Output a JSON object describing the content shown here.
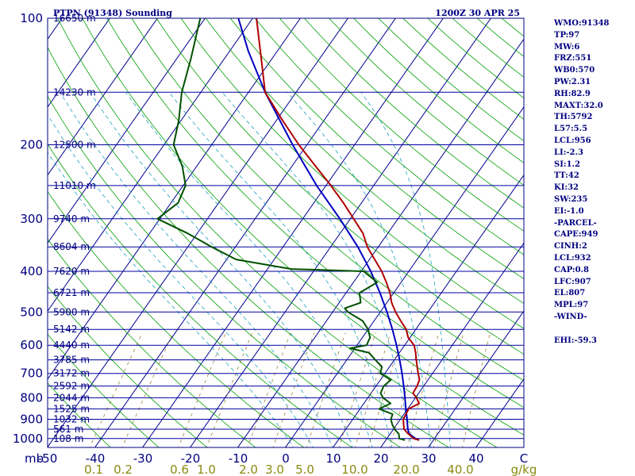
{
  "header": {
    "station": "PTPN (91348) Sounding",
    "time": "1200Z 30 APR 25"
  },
  "indices": [
    "WMO:91348",
    "TP:97",
    "MW:6",
    "FRZ:551",
    "WB0:570",
    "PW:2.31",
    "RH:82.9",
    "MAXT:32.0",
    "TH:5792",
    "L57:5.5",
    "LCL:956",
    "LI:-2.3",
    "SI:1.2",
    "TT:42",
    "KI:32",
    "SW:235",
    "EI:-1.0",
    "-PARCEL-",
    "CAPE:949",
    "CINH:2",
    "LCL:932",
    "CAP:0.8",
    "LFC:907",
    "EL:807",
    "MPL:97",
    "-WIND-",
    "",
    "EHI:-59.3"
  ],
  "colors": {
    "frame": "#000080",
    "isobar": "#0000a0",
    "isotherm": "#000090",
    "dry_adiabat": "#00a000",
    "moist_adiabat": "#20a0c0",
    "mixing_ratio": "#907020",
    "temperature": "#b00000",
    "dewpoint": "#005000",
    "parcel": "#0000c0",
    "mixing_label": "#8a8a10"
  },
  "chart_data": {
    "type": "skew-t log-p",
    "pressure_unit": "mb",
    "mixing_ratio_unit": "g/kg",
    "y_ticks": [
      "100",
      "200",
      "300",
      "400",
      "500",
      "600",
      "700",
      "800",
      "900",
      "1000"
    ],
    "x_ticks": [
      "-50",
      "-40",
      "-30",
      "-20",
      "-10",
      "0",
      "10",
      "20",
      "30",
      "40",
      "C"
    ],
    "mixing_ratio_labels": [
      "0.1",
      "0.2",
      "0.6",
      "1.0",
      "2.0",
      "3.0",
      "5.0",
      "10.0",
      "20.0",
      "40.0"
    ],
    "heights": [
      {
        "p": 100,
        "label": "16650 m"
      },
      {
        "p": 150,
        "label": "14230 m"
      },
      {
        "p": 200,
        "label": "12500 m"
      },
      {
        "p": 250,
        "label": "11010 m"
      },
      {
        "p": 300,
        "label": "9740 m"
      },
      {
        "p": 350,
        "label": "8604 m"
      },
      {
        "p": 400,
        "label": "7620 m"
      },
      {
        "p": 450,
        "label": "6721 m"
      },
      {
        "p": 500,
        "label": "5900 m"
      },
      {
        "p": 550,
        "label": "5142 m"
      },
      {
        "p": 600,
        "label": "4440 m"
      },
      {
        "p": 650,
        "label": "3785 m"
      },
      {
        "p": 700,
        "label": "3172 m"
      },
      {
        "p": 750,
        "label": "2592 m"
      },
      {
        "p": 800,
        "label": "2044 m"
      },
      {
        "p": 850,
        "label": "1525 m"
      },
      {
        "p": 900,
        "label": "1032 m"
      },
      {
        "p": 950,
        "label": "561 m"
      },
      {
        "p": 1000,
        "label": "108 m"
      }
    ],
    "series": [
      {
        "key": "temperature",
        "points": [
          [
            1009,
            27.0
          ],
          [
            1000,
            25.6
          ],
          [
            975,
            23.8
          ],
          [
            950,
            22.2
          ],
          [
            925,
            21.4
          ],
          [
            900,
            20.6
          ],
          [
            875,
            20.4
          ],
          [
            850,
            20.2
          ],
          [
            825,
            21.6
          ],
          [
            800,
            20.2
          ],
          [
            780,
            18.8
          ],
          [
            750,
            18.6
          ],
          [
            725,
            18.2
          ],
          [
            700,
            17.0
          ],
          [
            675,
            15.8
          ],
          [
            650,
            14.6
          ],
          [
            625,
            13.4
          ],
          [
            600,
            12.0
          ],
          [
            575,
            9.6
          ],
          [
            550,
            8.0
          ],
          [
            525,
            5.6
          ],
          [
            500,
            3.2
          ],
          [
            475,
            1.0
          ],
          [
            450,
            -0.8
          ],
          [
            425,
            -3.1
          ],
          [
            400,
            -5.7
          ],
          [
            375,
            -8.9
          ],
          [
            350,
            -12.3
          ],
          [
            325,
            -15.2
          ],
          [
            300,
            -19.3
          ],
          [
            275,
            -23.8
          ],
          [
            250,
            -29.0
          ],
          [
            225,
            -35.0
          ],
          [
            200,
            -41.7
          ],
          [
            175,
            -48.7
          ],
          [
            150,
            -56.5
          ],
          [
            125,
            -62.2
          ],
          [
            100,
            -69.2
          ]
        ]
      },
      {
        "key": "dewpoint",
        "points": [
          [
            1009,
            24.0
          ],
          [
            1000,
            22.6
          ],
          [
            975,
            21.8
          ],
          [
            950,
            20.2
          ],
          [
            925,
            19.0
          ],
          [
            900,
            18.0
          ],
          [
            875,
            17.6
          ],
          [
            850,
            14.0
          ],
          [
            825,
            15.6
          ],
          [
            800,
            13.2
          ],
          [
            780,
            12.0
          ],
          [
            750,
            11.6
          ],
          [
            725,
            12.2
          ],
          [
            700,
            9.0
          ],
          [
            675,
            8.4
          ],
          [
            650,
            6.0
          ],
          [
            625,
            3.6
          ],
          [
            610,
            -1.0
          ],
          [
            600,
            2.0
          ],
          [
            575,
            1.6
          ],
          [
            550,
            0.0
          ],
          [
            525,
            -2.4
          ],
          [
            500,
            -6.8
          ],
          [
            490,
            -8.0
          ],
          [
            475,
            -5.5
          ],
          [
            450,
            -7.2
          ],
          [
            425,
            -5.0
          ],
          [
            400,
            -9.5
          ],
          [
            395,
            -25.0
          ],
          [
            375,
            -38.0
          ],
          [
            350,
            -45.0
          ],
          [
            325,
            -52.0
          ],
          [
            300,
            -60.5
          ],
          [
            275,
            -58.5
          ],
          [
            250,
            -59.5
          ],
          [
            225,
            -63.0
          ],
          [
            200,
            -68.0
          ],
          [
            175,
            -70.5
          ],
          [
            150,
            -74.0
          ],
          [
            125,
            -77.0
          ],
          [
            100,
            -81.0
          ]
        ]
      },
      {
        "key": "parcel",
        "points": [
          [
            1009,
            27.0
          ],
          [
            1000,
            26.0
          ],
          [
            975,
            24.0
          ],
          [
            950,
            23.0
          ],
          [
            925,
            22.2
          ],
          [
            900,
            21.4
          ],
          [
            850,
            19.6
          ],
          [
            800,
            17.8
          ],
          [
            750,
            15.8
          ],
          [
            700,
            13.6
          ],
          [
            650,
            11.1
          ],
          [
            600,
            8.3
          ],
          [
            550,
            5.1
          ],
          [
            500,
            1.4
          ],
          [
            450,
            -2.9
          ],
          [
            400,
            -8.0
          ],
          [
            350,
            -14.3
          ],
          [
            300,
            -22.2
          ],
          [
            250,
            -32.0
          ],
          [
            200,
            -43.0
          ],
          [
            150,
            -56.5
          ],
          [
            120,
            -66.0
          ],
          [
            100,
            -73.0
          ]
        ]
      }
    ]
  }
}
